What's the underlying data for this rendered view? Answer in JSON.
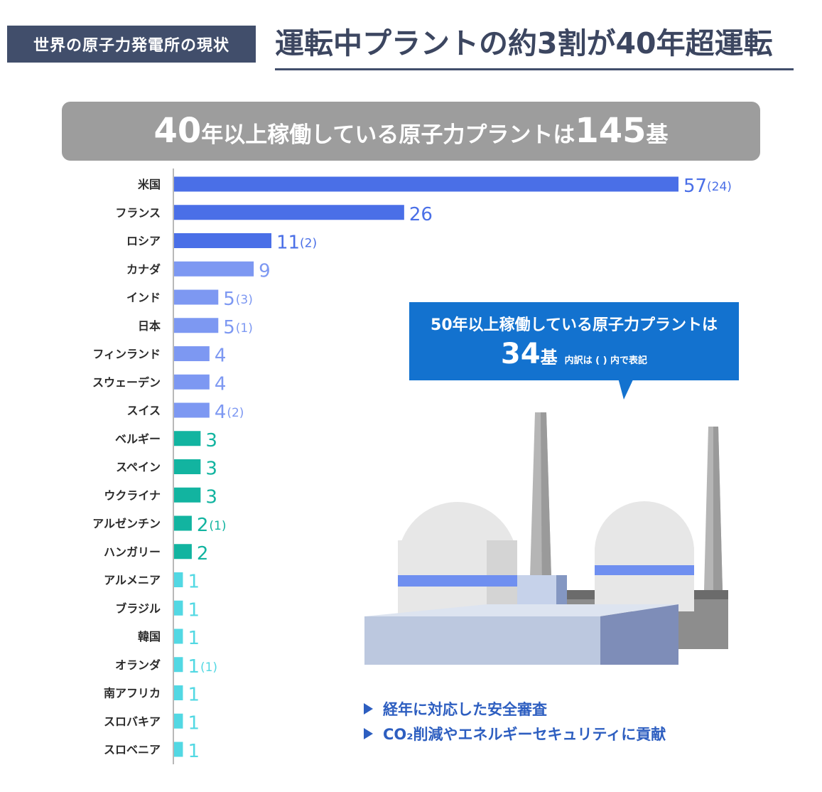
{
  "header": {
    "tag": "世界の原子力発電所の現状",
    "headline": "運転中プラントの約3割が40年超運転"
  },
  "banner": {
    "num_a": "40",
    "text_a": "年以上稼働している原子力プラントは",
    "num_b": "145",
    "text_b": "基"
  },
  "callout": {
    "line1": "50年以上稼働している原子力プラントは",
    "num": "34",
    "unit": "基",
    "note": "内訳は ( ) 内で表記"
  },
  "bullets": [
    "経年に対応した安全審査",
    "CO₂削減やエネルギーセキュリティに貢献"
  ],
  "colors": {
    "dark_blue": "#4a6fe7",
    "light_blue": "#7d98f2",
    "teal": "#12b4a0",
    "cyan": "#52d8e3",
    "label_dark": "#4a6fe7",
    "label_light": "#7d98f2",
    "label_teal": "#12b4a0",
    "label_cyan": "#52d8e3"
  },
  "chart_data": {
    "type": "bar",
    "orientation": "horizontal",
    "title": "40年以上稼働している原子力プラントは145基",
    "categories": [
      "米国",
      "フランス",
      "ロシア",
      "カナダ",
      "インド",
      "日本",
      "フィンランド",
      "スウェーデン",
      "スイス",
      "ベルギー",
      "スペイン",
      "ウクライナ",
      "アルゼンチン",
      "ハンガリー",
      "アルメニア",
      "ブラジル",
      "韓国",
      "オランダ",
      "南アフリカ",
      "スロバキア",
      "スロベニア"
    ],
    "series": [
      {
        "name": "40年以上稼働",
        "values": [
          57,
          26,
          11,
          9,
          5,
          5,
          4,
          4,
          4,
          3,
          3,
          3,
          2,
          2,
          1,
          1,
          1,
          1,
          1,
          1,
          1
        ]
      },
      {
        "name": "50年以上稼働",
        "values": [
          24,
          null,
          2,
          null,
          3,
          1,
          null,
          null,
          2,
          null,
          null,
          null,
          1,
          null,
          null,
          null,
          null,
          1,
          null,
          null,
          null
        ]
      }
    ],
    "color_groups": [
      "dark_blue",
      "dark_blue",
      "dark_blue",
      "light_blue",
      "light_blue",
      "light_blue",
      "light_blue",
      "light_blue",
      "light_blue",
      "teal",
      "teal",
      "teal",
      "teal",
      "teal",
      "cyan",
      "cyan",
      "cyan",
      "cyan",
      "cyan",
      "cyan",
      "cyan"
    ],
    "xlim": [
      0,
      57
    ],
    "legend": "none",
    "grid": false
  }
}
